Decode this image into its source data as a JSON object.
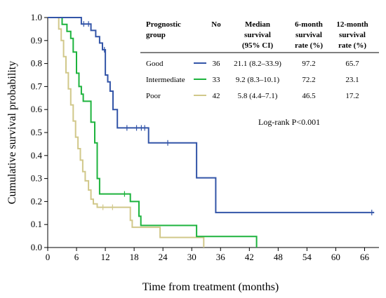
{
  "chart_data": {
    "type": "line",
    "subtype": "kaplan-meier-step",
    "xlabel": "Time from treatment (months)",
    "ylabel": "Cumulative survival probability",
    "xlim": [
      0,
      69
    ],
    "ylim": [
      0,
      1.0
    ],
    "x_ticks": [
      "0",
      "6",
      "12",
      "18",
      "24",
      "30",
      "36",
      "42",
      "48",
      "54",
      "60",
      "66"
    ],
    "y_ticks": [
      "0.0",
      "0.1",
      "0.2",
      "0.3",
      "0.4",
      "0.5",
      "0.6",
      "0.7",
      "0.8",
      "0.9",
      "1.0"
    ],
    "grid": false,
    "series": [
      {
        "name": "Good",
        "color": "#3355a8",
        "steps": [
          [
            0,
            1.0
          ],
          [
            6,
            1.0
          ],
          [
            7,
            0.972
          ],
          [
            8,
            0.972
          ],
          [
            9,
            0.944
          ],
          [
            10,
            0.917
          ],
          [
            10.8,
            0.889
          ],
          [
            11.4,
            0.86
          ],
          [
            12,
            0.75
          ],
          [
            12.5,
            0.72
          ],
          [
            13,
            0.68
          ],
          [
            13.6,
            0.6
          ],
          [
            14.5,
            0.52
          ],
          [
            21,
            0.52
          ],
          [
            21,
            0.455
          ],
          [
            31,
            0.455
          ],
          [
            31,
            0.303
          ],
          [
            35,
            0.303
          ],
          [
            35,
            0.152
          ],
          [
            68,
            0.152
          ]
        ],
        "censored": [
          [
            7.5,
            0.972
          ],
          [
            8.5,
            0.972
          ],
          [
            11.8,
            0.86
          ],
          [
            16.5,
            0.52
          ],
          [
            18.5,
            0.52
          ],
          [
            19.5,
            0.52
          ],
          [
            20.2,
            0.52
          ],
          [
            25,
            0.455
          ],
          [
            67.5,
            0.152
          ]
        ]
      },
      {
        "name": "Intermediate",
        "color": "#1db33d",
        "steps": [
          [
            0,
            1.0
          ],
          [
            3,
            1.0
          ],
          [
            3,
            0.97
          ],
          [
            4,
            0.94
          ],
          [
            4.8,
            0.909
          ],
          [
            5.3,
            0.85
          ],
          [
            6,
            0.758
          ],
          [
            6.5,
            0.7
          ],
          [
            7,
            0.667
          ],
          [
            7.4,
            0.636
          ],
          [
            9,
            0.636
          ],
          [
            9,
            0.545
          ],
          [
            9.8,
            0.455
          ],
          [
            10.3,
            0.3
          ],
          [
            10.8,
            0.233
          ],
          [
            17,
            0.233
          ],
          [
            17.2,
            0.2
          ],
          [
            19,
            0.136
          ],
          [
            19.4,
            0.096
          ],
          [
            31,
            0.096
          ],
          [
            31,
            0.048
          ],
          [
            43.5,
            0.048
          ],
          [
            43.5,
            0.0
          ]
        ],
        "censored": [
          [
            16,
            0.233
          ]
        ]
      },
      {
        "name": "Poor",
        "color": "#d1c88a",
        "steps": [
          [
            0,
            1.0
          ],
          [
            2,
            1.0
          ],
          [
            2.3,
            0.95
          ],
          [
            2.8,
            0.9
          ],
          [
            3.3,
            0.83
          ],
          [
            3.8,
            0.76
          ],
          [
            4.3,
            0.69
          ],
          [
            4.8,
            0.62
          ],
          [
            5.3,
            0.55
          ],
          [
            5.8,
            0.48
          ],
          [
            6.3,
            0.43
          ],
          [
            6.8,
            0.38
          ],
          [
            7.3,
            0.33
          ],
          [
            7.8,
            0.29
          ],
          [
            8.5,
            0.25
          ],
          [
            9,
            0.21
          ],
          [
            9.5,
            0.19
          ],
          [
            10.3,
            0.175
          ],
          [
            17,
            0.175
          ],
          [
            17.2,
            0.118
          ],
          [
            17.6,
            0.088
          ],
          [
            23,
            0.088
          ],
          [
            23.4,
            0.044
          ],
          [
            32.5,
            0.044
          ],
          [
            32.5,
            0.0
          ]
        ],
        "censored": [
          [
            11.5,
            0.175
          ],
          [
            13.5,
            0.175
          ]
        ]
      }
    ],
    "table": {
      "headers": [
        [
          "Prognostic",
          "group"
        ],
        [
          "No"
        ],
        [
          "Median",
          "survival",
          "(95% CI)"
        ],
        [
          "6-month",
          "survival",
          "rate (%)"
        ],
        [
          "12-month",
          "survival",
          "rate (%)"
        ]
      ],
      "rows": [
        {
          "group": "Good",
          "n": "36",
          "median": "21.1 (8.2–33.9)",
          "six": "97.2",
          "twelve": "65.7"
        },
        {
          "group": "Intermediate",
          "n": "33",
          "median": "9.2 (8.3–10.1)",
          "six": "72.2",
          "twelve": "23.1"
        },
        {
          "group": "Poor",
          "n": "42",
          "median": "5.8 (4.4–7.1)",
          "six": "46.5",
          "twelve": "17.2"
        }
      ]
    },
    "annotation": "Log-rank P<0.001"
  }
}
